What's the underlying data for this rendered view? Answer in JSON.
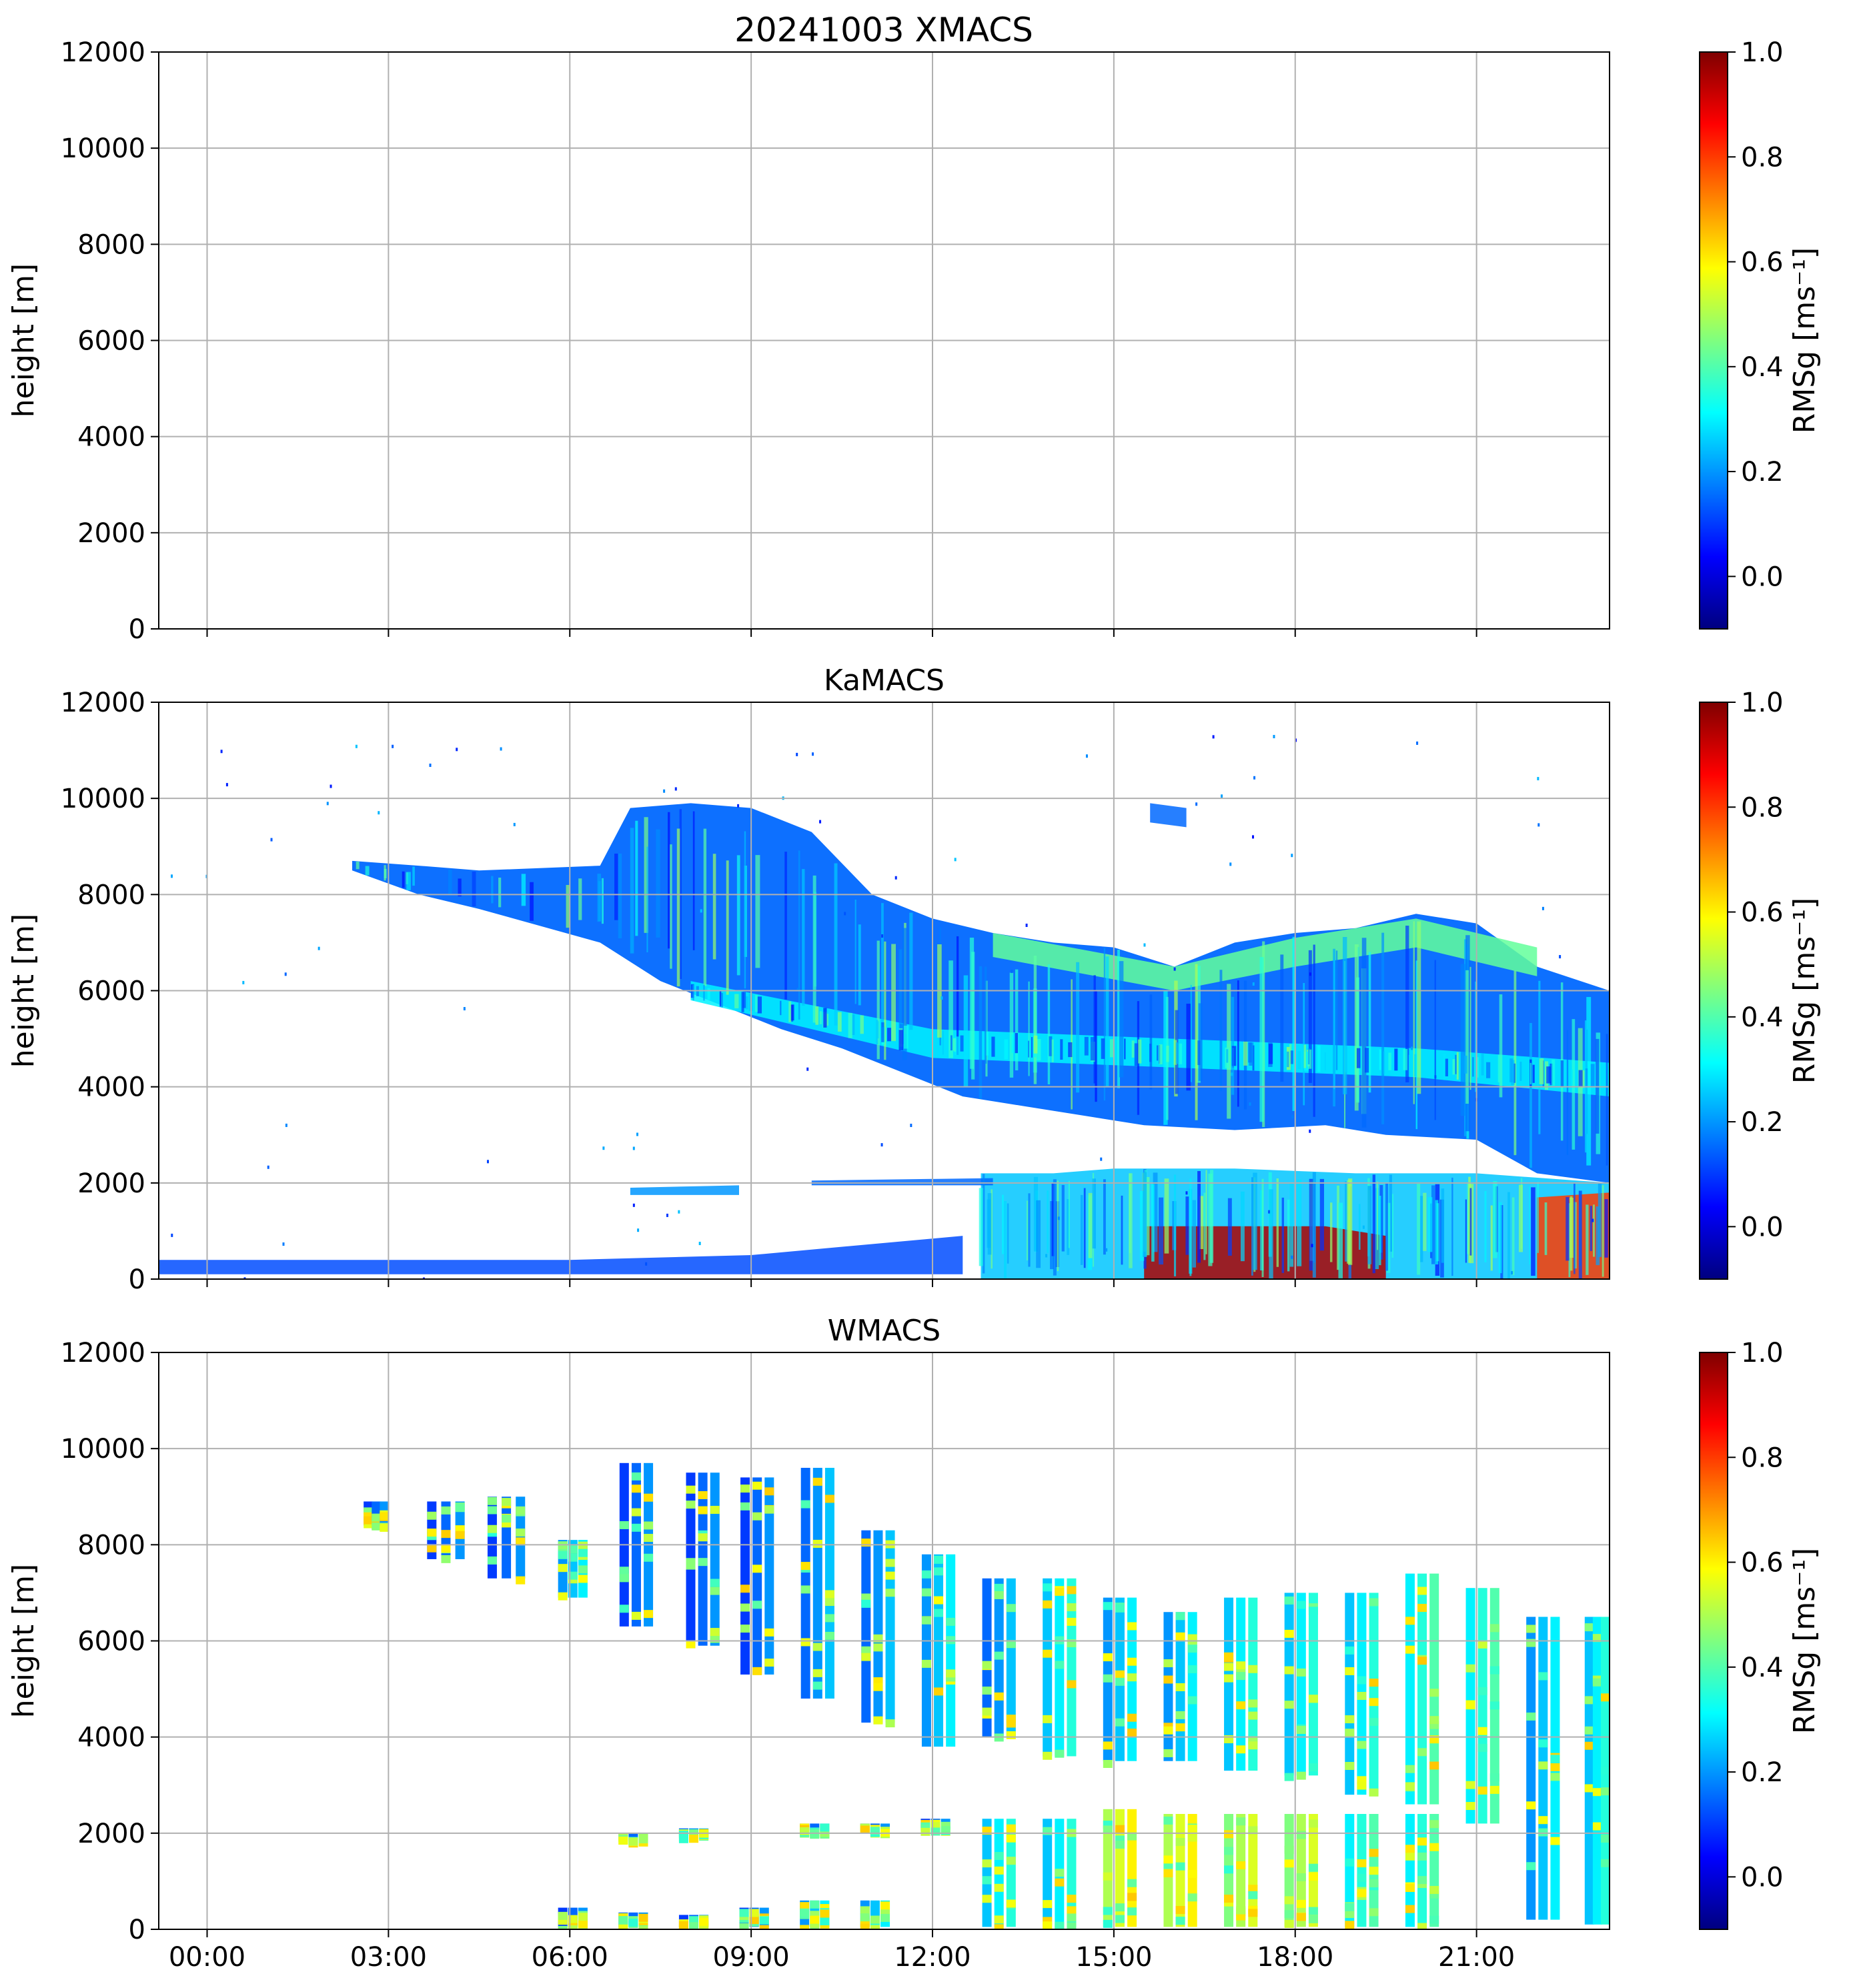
{
  "figure": {
    "title": "20241003 XMACS",
    "x_tick_labels": [
      "00:00",
      "03:00",
      "06:00",
      "09:00",
      "12:00",
      "15:00",
      "18:00",
      "21:00"
    ]
  },
  "colormap": {
    "name": "jet",
    "stops": [
      "#00007f",
      "#0000ff",
      "#007fff",
      "#00ffff",
      "#7fff7f",
      "#ffff00",
      "#ff7f00",
      "#ff0000",
      "#7f0000"
    ]
  },
  "chart_data": [
    {
      "type": "heatmap",
      "id": "xmacs",
      "title": "",
      "xlabel": "",
      "ylabel": "height [m]",
      "xlim": [
        -0.8,
        23.2
      ],
      "ylim": [
        0,
        12000
      ],
      "y_ticks": [
        0,
        2000,
        4000,
        6000,
        8000,
        10000,
        12000
      ],
      "x_ticks_hours": [
        0,
        3,
        6,
        9,
        12,
        15,
        18,
        21
      ],
      "grid": true,
      "colorbar": {
        "label": "RMSg [ms⁻¹]",
        "range": [
          -0.1,
          1.0
        ],
        "ticks": [
          0.0,
          0.2,
          0.4,
          0.6,
          0.8,
          1.0
        ]
      },
      "regions": []
    },
    {
      "type": "heatmap",
      "id": "kamacs",
      "title": "KaMACS",
      "xlabel": "",
      "ylabel": "height [m]",
      "xlim": [
        -0.8,
        23.2
      ],
      "ylim": [
        0,
        12000
      ],
      "y_ticks": [
        0,
        2000,
        4000,
        6000,
        8000,
        10000,
        12000
      ],
      "x_ticks_hours": [
        0,
        3,
        6,
        9,
        12,
        15,
        18,
        21
      ],
      "grid": true,
      "colorbar": {
        "label": "RMSg [ms⁻¹]",
        "range": [
          -0.1,
          1.0
        ],
        "ticks": [
          0.0,
          0.2,
          0.4,
          0.6,
          0.8,
          1.0
        ]
      },
      "regions": [
        {
          "desc": "upper cloud top (m)",
          "top": [
            [
              2.4,
              8700
            ],
            [
              3.5,
              8600
            ],
            [
              4.5,
              8500
            ],
            [
              6.5,
              8600
            ],
            [
              7.0,
              9800
            ],
            [
              8.0,
              9900
            ],
            [
              9.0,
              9800
            ],
            [
              10.0,
              9300
            ],
            [
              11.0,
              8000
            ],
            [
              12.0,
              7500
            ],
            [
              13.0,
              7200
            ],
            [
              14.0,
              7000
            ],
            [
              15.0,
              6900
            ],
            [
              16.0,
              6500
            ],
            [
              17.0,
              7000
            ],
            [
              18.0,
              7200
            ],
            [
              19.0,
              7300
            ],
            [
              20.0,
              7600
            ],
            [
              21.0,
              7400
            ],
            [
              22.0,
              6500
            ],
            [
              23.2,
              6000
            ]
          ],
          "base": [
            [
              2.4,
              8500
            ],
            [
              3.5,
              8000
            ],
            [
              4.5,
              7700
            ],
            [
              6.5,
              7000
            ],
            [
              7.5,
              6200
            ],
            [
              8.5,
              5700
            ],
            [
              9.5,
              5200
            ],
            [
              10.5,
              4800
            ],
            [
              11.5,
              4300
            ],
            [
              12.5,
              3800
            ],
            [
              13.5,
              3600
            ],
            [
              14.5,
              3400
            ],
            [
              15.5,
              3200
            ],
            [
              17.0,
              3100
            ],
            [
              18.5,
              3200
            ],
            [
              19.5,
              3000
            ],
            [
              21.0,
              2900
            ],
            [
              22.0,
              2200
            ],
            [
              23.2,
              2000
            ]
          ],
          "level": 0.15
        },
        {
          "desc": "mid cloud streak",
          "top": [
            [
              8.0,
              6200
            ],
            [
              12.0,
              5200
            ],
            [
              16.0,
              5000
            ],
            [
              20.0,
              4800
            ],
            [
              23.2,
              4500
            ]
          ],
          "base": [
            [
              8.0,
              5800
            ],
            [
              12.0,
              4600
            ],
            [
              16.0,
              4400
            ],
            [
              20.0,
              4200
            ],
            [
              23.2,
              3800
            ]
          ],
          "level": 0.3
        },
        {
          "desc": "upper edge band",
          "top": [
            [
              13.0,
              7200
            ],
            [
              16.0,
              6500
            ],
            [
              18.0,
              7100
            ],
            [
              20.0,
              7500
            ],
            [
              22.0,
              6900
            ]
          ],
          "base": [
            [
              13.0,
              6700
            ],
            [
              16.0,
              6000
            ],
            [
              18.0,
              6500
            ],
            [
              20.0,
              6900
            ],
            [
              22.0,
              6300
            ]
          ],
          "level": 0.42
        },
        {
          "desc": "low cloud deck",
          "top": [
            [
              12.8,
              2200
            ],
            [
              14.0,
              2200
            ],
            [
              15.0,
              2300
            ],
            [
              17.0,
              2300
            ],
            [
              19.0,
              2200
            ],
            [
              21.0,
              2200
            ],
            [
              23.2,
              2000
            ]
          ],
          "base": [
            [
              12.8,
              0
            ],
            [
              23.2,
              0
            ]
          ],
          "level": 0.25
        },
        {
          "desc": "precipitation core",
          "top": [
            [
              15.5,
              1100
            ],
            [
              18.5,
              1100
            ],
            [
              19.5,
              900
            ]
          ],
          "base": [
            [
              15.5,
              0
            ],
            [
              19.5,
              0
            ]
          ],
          "level": 0.95
        },
        {
          "desc": "low layer 02",
          "top": [
            [
              22.0,
              1700
            ],
            [
              23.2,
              1800
            ]
          ],
          "base": [
            [
              22.0,
              0
            ],
            [
              23.2,
              0
            ]
          ],
          "level": 0.8
        },
        {
          "desc": "thin layer 2000m",
          "top": [
            [
              10.0,
              2050
            ],
            [
              13.0,
              2100
            ]
          ],
          "base": [
            [
              10.0,
              1950
            ],
            [
              13.0,
              1950
            ]
          ],
          "level": 0.15
        },
        {
          "desc": "thin layer near 1800m",
          "top": [
            [
              7.0,
              1900
            ],
            [
              8.8,
              1950
            ]
          ],
          "base": [
            [
              7.0,
              1750
            ],
            [
              8.8,
              1750
            ]
          ],
          "level": 0.2
        },
        {
          "desc": "boundary layer clutter",
          "top": [
            [
              -0.8,
              400
            ],
            [
              6.0,
              400
            ],
            [
              9.0,
              500
            ],
            [
              12.5,
              900
            ]
          ],
          "base": [
            [
              -0.8,
              100
            ],
            [
              12.5,
              100
            ]
          ],
          "level": 0.12
        },
        {
          "desc": "cirrus patch",
          "top": [
            [
              15.6,
              9900
            ],
            [
              16.2,
              9800
            ]
          ],
          "base": [
            [
              15.6,
              9500
            ],
            [
              16.2,
              9400
            ]
          ],
          "level": 0.15
        }
      ]
    },
    {
      "type": "heatmap",
      "id": "wmacs",
      "title": "WMACS",
      "xlabel": "",
      "ylabel": "height [m]",
      "xlim": [
        -0.8,
        23.2
      ],
      "ylim": [
        0,
        12000
      ],
      "y_ticks": [
        0,
        2000,
        4000,
        6000,
        8000,
        10000,
        12000
      ],
      "x_ticks_hours": [
        0,
        3,
        6,
        9,
        12,
        15,
        18,
        21
      ],
      "grid": true,
      "colorbar": {
        "label": "RMSg [ms⁻¹]",
        "range": [
          -0.1,
          1.0
        ],
        "ticks": [
          0.0,
          0.2,
          0.4,
          0.6,
          0.8,
          1.0
        ]
      },
      "strips": [
        {
          "t0": 2.6,
          "t1": 3.0,
          "top": 8900,
          "base": 8400,
          "level": 0.15
        },
        {
          "t0": 3.6,
          "t1": 4.3,
          "top": 8900,
          "base": 7700,
          "level": 0.15
        },
        {
          "t0": 4.6,
          "t1": 5.3,
          "top": 9000,
          "base": 7300,
          "level": 0.15
        },
        {
          "t0": 5.8,
          "t1": 6.3,
          "top": 8100,
          "base": 6900,
          "level": 0.25
        },
        {
          "t0": 6.8,
          "t1": 7.4,
          "top": 9700,
          "base": 6300,
          "level": 0.15
        },
        {
          "t0": 7.9,
          "t1": 8.5,
          "top": 9500,
          "base": 5900,
          "level": 0.15
        },
        {
          "t0": 8.8,
          "t1": 9.4,
          "top": 9400,
          "base": 5300,
          "level": 0.15
        },
        {
          "t0": 9.8,
          "t1": 10.4,
          "top": 9600,
          "base": 4800,
          "level": 0.2
        },
        {
          "t0": 10.8,
          "t1": 11.4,
          "top": 8300,
          "base": 4300,
          "level": 0.2
        },
        {
          "t0": 11.8,
          "t1": 12.4,
          "top": 7800,
          "base": 3800,
          "level": 0.25
        },
        {
          "t0": 12.8,
          "t1": 13.4,
          "top": 7300,
          "base": 4000,
          "level": 0.2
        },
        {
          "t0": 13.8,
          "t1": 14.4,
          "top": 7300,
          "base": 3600,
          "level": 0.3
        },
        {
          "t0": 14.8,
          "t1": 15.4,
          "top": 6900,
          "base": 3500,
          "level": 0.25
        },
        {
          "t0": 15.8,
          "t1": 16.4,
          "top": 6600,
          "base": 3500,
          "level": 0.25
        },
        {
          "t0": 16.8,
          "t1": 17.4,
          "top": 6900,
          "base": 3300,
          "level": 0.3
        },
        {
          "t0": 17.8,
          "t1": 18.4,
          "top": 7000,
          "base": 3200,
          "level": 0.3
        },
        {
          "t0": 18.8,
          "t1": 19.4,
          "top": 7000,
          "base": 2800,
          "level": 0.3
        },
        {
          "t0": 19.8,
          "t1": 20.4,
          "top": 7400,
          "base": 2600,
          "level": 0.35
        },
        {
          "t0": 20.8,
          "t1": 21.4,
          "top": 7100,
          "base": 2200,
          "level": 0.35
        },
        {
          "t0": 21.8,
          "t1": 22.4,
          "top": 6500,
          "base": 200,
          "level": 0.25
        },
        {
          "t0": 22.8,
          "t1": 23.2,
          "top": 6500,
          "base": 100,
          "level": 0.3
        },
        {
          "t0": 12.8,
          "t1": 13.4,
          "top": 2300,
          "base": 50,
          "level": 0.3
        },
        {
          "t0": 13.8,
          "t1": 14.4,
          "top": 2300,
          "base": 50,
          "level": 0.3
        },
        {
          "t0": 14.8,
          "t1": 15.4,
          "top": 2500,
          "base": 50,
          "level": 0.55
        },
        {
          "t0": 15.8,
          "t1": 16.4,
          "top": 2400,
          "base": 50,
          "level": 0.55
        },
        {
          "t0": 16.8,
          "t1": 17.4,
          "top": 2400,
          "base": 50,
          "level": 0.5
        },
        {
          "t0": 17.8,
          "t1": 18.4,
          "top": 2400,
          "base": 50,
          "level": 0.5
        },
        {
          "t0": 18.8,
          "t1": 19.4,
          "top": 2400,
          "base": 50,
          "level": 0.35
        },
        {
          "t0": 19.8,
          "t1": 20.4,
          "top": 2400,
          "base": 50,
          "level": 0.35
        },
        {
          "t0": 9.8,
          "t1": 10.3,
          "top": 600,
          "base": 50,
          "level": 0.25
        },
        {
          "t0": 10.8,
          "t1": 11.3,
          "top": 600,
          "base": 50,
          "level": 0.25
        },
        {
          "t0": 5.8,
          "t1": 6.3,
          "top": 450,
          "base": 50,
          "level": 0.15
        },
        {
          "t0": 6.8,
          "t1": 7.3,
          "top": 350,
          "base": 50,
          "level": 0.15
        },
        {
          "t0": 7.8,
          "t1": 8.3,
          "top": 300,
          "base": 50,
          "level": 0.15
        },
        {
          "t0": 8.8,
          "t1": 9.3,
          "top": 450,
          "base": 50,
          "level": 0.15
        },
        {
          "t0": 9.8,
          "t1": 10.3,
          "top": 2200,
          "base": 2050,
          "level": 0.15
        },
        {
          "t0": 10.8,
          "t1": 11.3,
          "top": 2200,
          "base": 2050,
          "level": 0.15
        },
        {
          "t0": 11.8,
          "t1": 12.3,
          "top": 2300,
          "base": 2100,
          "level": 0.15
        },
        {
          "t0": 6.8,
          "t1": 7.3,
          "top": 2000,
          "base": 1850,
          "level": 0.15
        },
        {
          "t0": 7.8,
          "t1": 8.3,
          "top": 2100,
          "base": 1950,
          "level": 0.2
        }
      ]
    }
  ]
}
